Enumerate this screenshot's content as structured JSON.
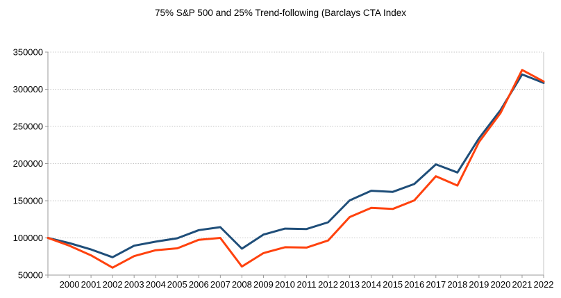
{
  "chart_data": {
    "type": "line",
    "title": "75% S&P 500 and 25% Trend-following (Barclays CTA Index",
    "x_labels": [
      "",
      "2000",
      "2001",
      "2002",
      "2003",
      "2004",
      "2005",
      "2006",
      "2007",
      "2008",
      "2009",
      "2010",
      "2011",
      "2012",
      "2013",
      "2014",
      "2015",
      "2016",
      "2017",
      "2018",
      "2019",
      "2020",
      "2021",
      "2022"
    ],
    "y_ticks": [
      50000,
      100000,
      150000,
      200000,
      250000,
      300000,
      350000
    ],
    "ylim": [
      50000,
      350000
    ],
    "grid": "horizontal-dotted",
    "legend": "none",
    "series": [
      {
        "name": "blue",
        "color": "#1f4e79",
        "values": [
          100000,
          93000,
          84500,
          74000,
          89500,
          95000,
          99500,
          110500,
          114500,
          85500,
          104500,
          112500,
          112000,
          121000,
          150500,
          163500,
          162000,
          172500,
          199000,
          188000,
          234000,
          272000,
          320000,
          308500
        ]
      },
      {
        "name": "orange",
        "color": "#ff420e",
        "values": [
          100000,
          89500,
          76500,
          60000,
          75500,
          83500,
          86000,
          97500,
          100000,
          61500,
          79500,
          87500,
          87000,
          96500,
          128000,
          140500,
          139000,
          150500,
          183000,
          170500,
          229000,
          268000,
          326000,
          310500
        ]
      }
    ]
  },
  "colors": {
    "axis": "#999999",
    "gridline": "#c6c6c6",
    "right_border": "#c6c6c6",
    "text": "#000000",
    "background": "#ffffff"
  }
}
